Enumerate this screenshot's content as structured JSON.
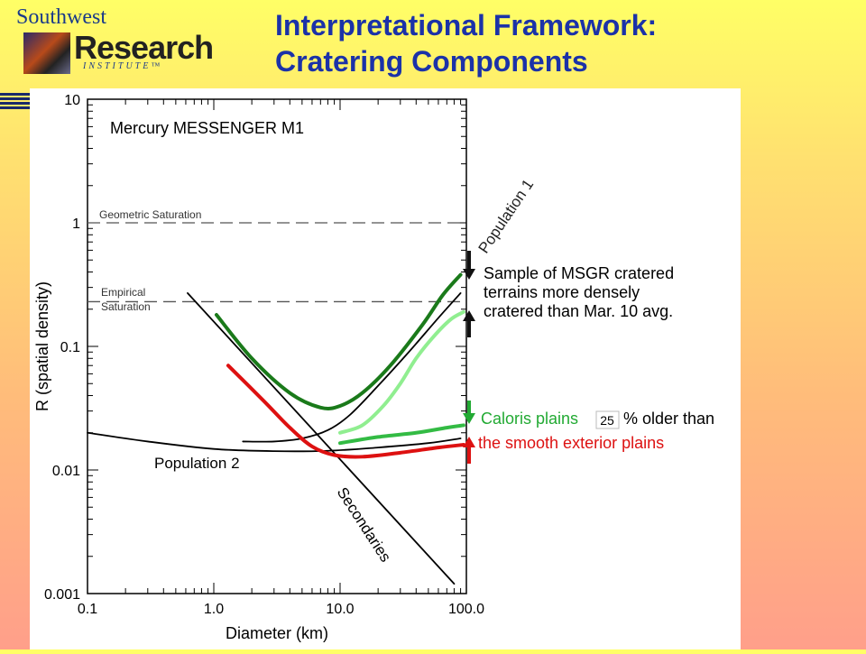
{
  "logo": {
    "top_text": "Southwest",
    "main_text": "Research",
    "sub_text": "INSTITUTE™"
  },
  "slide": {
    "title_line1": "Interpretational Framework:",
    "title_line2": "Cratering Components"
  },
  "chart_data": {
    "type": "line",
    "title": "Mercury MESSENGER M1",
    "xlabel": "Diameter (km)",
    "ylabel": "R (spatial density)",
    "xscale": "log",
    "yscale": "log",
    "xlim": [
      0.1,
      100.0
    ],
    "ylim": [
      0.001,
      10
    ],
    "xticks": [
      "0.1",
      "1.0",
      "10.0",
      "100.0"
    ],
    "yticks": [
      "0.001",
      "0.01",
      "0.1",
      "1",
      "10"
    ],
    "reference_lines": [
      {
        "label": "Geometric Saturation",
        "y": 1.0
      },
      {
        "label1": "Empirical",
        "label2": "Saturation",
        "y": 0.23
      }
    ],
    "curve_labels": {
      "pop1": "Population 1",
      "pop2": "Population 2",
      "secondaries": "Secondaries"
    },
    "series": [
      {
        "key": "pop1",
        "color": "#000000",
        "points": [
          [
            1.7,
            0.017
          ],
          [
            3,
            0.017
          ],
          [
            5,
            0.018
          ],
          [
            8,
            0.021
          ],
          [
            12,
            0.028
          ],
          [
            20,
            0.048
          ],
          [
            35,
            0.09
          ],
          [
            60,
            0.17
          ],
          [
            90,
            0.27
          ]
        ]
      },
      {
        "key": "pop2",
        "color": "#000000",
        "points": [
          [
            0.1,
            0.02
          ],
          [
            0.3,
            0.017
          ],
          [
            1,
            0.0148
          ],
          [
            3,
            0.0142
          ],
          [
            8,
            0.0143
          ],
          [
            20,
            0.0152
          ],
          [
            50,
            0.0165
          ],
          [
            90,
            0.018
          ]
        ]
      },
      {
        "key": "secondaries",
        "color": "#000000",
        "points": [
          [
            0.62,
            0.27
          ],
          [
            80,
            0.0012
          ]
        ]
      },
      {
        "key": "dark_green",
        "color": "#1a7a1a",
        "points": [
          [
            1.05,
            0.18
          ],
          [
            2,
            0.08
          ],
          [
            4,
            0.042
          ],
          [
            7,
            0.032
          ],
          [
            10,
            0.033
          ],
          [
            15,
            0.042
          ],
          [
            25,
            0.07
          ],
          [
            45,
            0.15
          ],
          [
            65,
            0.26
          ],
          [
            90,
            0.38
          ]
        ]
      },
      {
        "key": "light_green",
        "color": "#90ee90",
        "points": [
          [
            10,
            0.02
          ],
          [
            15,
            0.023
          ],
          [
            22,
            0.033
          ],
          [
            30,
            0.05
          ],
          [
            40,
            0.08
          ],
          [
            55,
            0.12
          ],
          [
            75,
            0.165
          ],
          [
            95,
            0.19
          ]
        ]
      },
      {
        "key": "mid_green",
        "color": "#33bb44",
        "points": [
          [
            10,
            0.0165
          ],
          [
            20,
            0.0185
          ],
          [
            40,
            0.02
          ],
          [
            70,
            0.022
          ],
          [
            95,
            0.023
          ]
        ]
      },
      {
        "key": "red",
        "color": "#dd1111",
        "points": [
          [
            1.3,
            0.07
          ],
          [
            2.5,
            0.036
          ],
          [
            4,
            0.022
          ],
          [
            6,
            0.0155
          ],
          [
            9,
            0.0132
          ],
          [
            15,
            0.0128
          ],
          [
            30,
            0.0138
          ],
          [
            60,
            0.0152
          ],
          [
            95,
            0.016
          ]
        ]
      }
    ],
    "annotations": {
      "sample_line1": "Sample of MSGR cratered",
      "sample_line2": "terrains more densely",
      "sample_line3": "cratered than Mar. 10 avg.",
      "caloris_label": "Caloris plains",
      "percent_value": "25",
      "older_text": "% older than",
      "exterior_text": "the smooth exterior plains"
    }
  }
}
